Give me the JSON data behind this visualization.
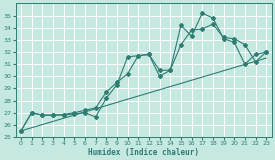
{
  "bg_color": "#c5e8e0",
  "grid_color": "#ffffff",
  "line_color": "#2e7d73",
  "xlabel": "Humidex (Indice chaleur)",
  "xlim": [
    -0.5,
    23.5
  ],
  "ylim": [
    25,
    36
  ],
  "yticks": [
    25,
    26,
    27,
    28,
    29,
    30,
    31,
    32,
    33,
    34,
    35
  ],
  "xticks": [
    0,
    1,
    2,
    3,
    4,
    5,
    6,
    7,
    8,
    9,
    10,
    11,
    12,
    13,
    14,
    15,
    16,
    17,
    18,
    19,
    20,
    21,
    22,
    23
  ],
  "line1_x": [
    0,
    1,
    2,
    3,
    4,
    5,
    6,
    7,
    8,
    9,
    10,
    11,
    12,
    13,
    14,
    15,
    16,
    17,
    18,
    19,
    20,
    21,
    22,
    23
  ],
  "line1_y": [
    25.5,
    27.0,
    26.8,
    26.8,
    26.8,
    26.9,
    27.0,
    26.65,
    28.2,
    29.3,
    31.6,
    31.7,
    31.8,
    30.5,
    30.5,
    34.2,
    33.3,
    35.2,
    34.8,
    33.1,
    32.8,
    31.0,
    31.8,
    32.0
  ],
  "line2_x": [
    0,
    1,
    2,
    3,
    4,
    5,
    6,
    7,
    8,
    9,
    10,
    11,
    12,
    13,
    14,
    15,
    16,
    17,
    18,
    19,
    20,
    21,
    22,
    23
  ],
  "line2_y": [
    25.5,
    27.0,
    26.8,
    26.8,
    26.85,
    27.0,
    27.2,
    27.4,
    28.7,
    29.5,
    30.2,
    31.7,
    31.8,
    30.0,
    30.5,
    32.6,
    33.8,
    33.9,
    34.3,
    33.2,
    33.1,
    32.6,
    31.2,
    32.0
  ],
  "line3_x": [
    0,
    23
  ],
  "line3_y": [
    25.5,
    31.5
  ]
}
